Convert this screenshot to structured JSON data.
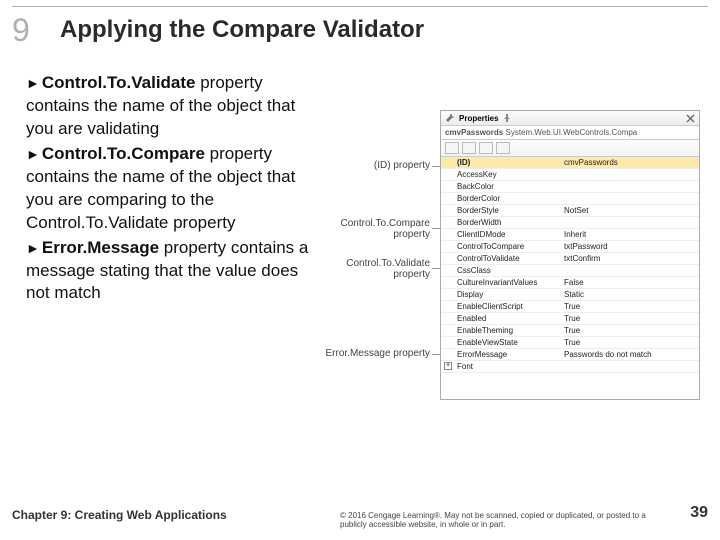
{
  "chapter_num": "9",
  "title": "Applying the Compare Validator",
  "bullets": [
    {
      "bold": "Control.To.Validate",
      "rest": " property contains the name of the object that you are validating"
    },
    {
      "bold": "Control.To.Compare",
      "rest": " property contains the name of the object that you are comparing to the Control.To.Validate property"
    },
    {
      "bold": "Error.Message",
      "rest": " property contains a message stating that the value does not match"
    }
  ],
  "footer_chapter": "Chapter 9: Creating Web Applications",
  "footer_copy": "© 2016 Cengage Learning®. May not be scanned, copied or duplicated, or posted to a publicly accessible website, in whole or in part.",
  "footer_page": "39",
  "panel": {
    "title": "Properties",
    "subtitle_left": "cmvPasswords",
    "subtitle_right": "System.Web.UI.WebControls.Compa",
    "selected_row": 0,
    "rows": [
      {
        "k": "(ID)",
        "v": "cmvPasswords"
      },
      {
        "k": "AccessKey",
        "v": ""
      },
      {
        "k": "BackColor",
        "v": ""
      },
      {
        "k": "BorderColor",
        "v": ""
      },
      {
        "k": "BorderStyle",
        "v": "NotSet"
      },
      {
        "k": "BorderWidth",
        "v": ""
      },
      {
        "k": "ClientIDMode",
        "v": "Inherit"
      },
      {
        "k": "ControlToCompare",
        "v": "txtPassword"
      },
      {
        "k": "ControlToValidate",
        "v": "txtConfirm"
      },
      {
        "k": "CssClass",
        "v": ""
      },
      {
        "k": "CultureInvariantValues",
        "v": "False"
      },
      {
        "k": "Display",
        "v": "Static"
      },
      {
        "k": "EnableClientScript",
        "v": "True"
      },
      {
        "k": "Enabled",
        "v": "True"
      },
      {
        "k": "EnableTheming",
        "v": "True"
      },
      {
        "k": "EnableViewState",
        "v": "True"
      },
      {
        "k": "ErrorMessage",
        "v": "Passwords do not match"
      },
      {
        "k": "Font",
        "v": ""
      }
    ]
  },
  "callouts": {
    "id": "(ID) property",
    "ctc_label": "Control.To.Compare",
    "ctc_label2": "property",
    "ctv_label": "Control.To.Validate",
    "ctv_label2": "property",
    "err_label": "Error.Message property"
  },
  "colors": {
    "accent_yellow": "#ffe9a8",
    "header_grey": "#ececec",
    "line_grey": "#999999"
  }
}
